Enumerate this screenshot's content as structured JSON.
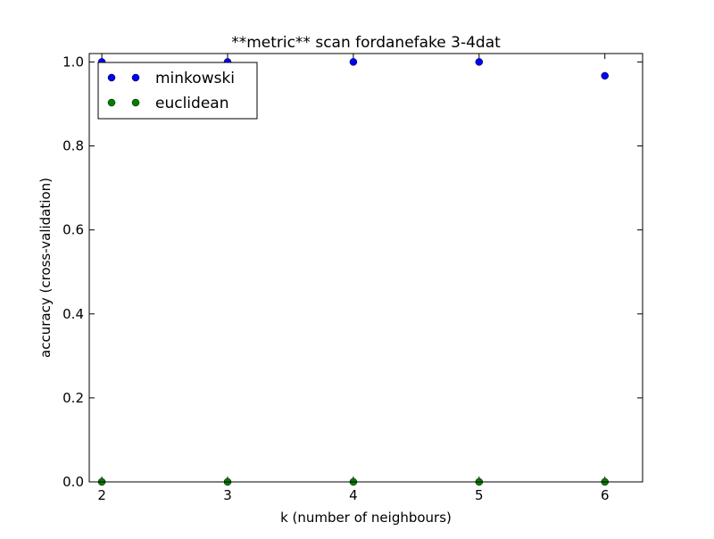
{
  "chart_data": {
    "type": "scatter",
    "title": "**metric** scan fordanefake 3-4dat",
    "xlabel": "k (number of neighbours)",
    "ylabel": "accuracy (cross-validation)",
    "xlim": [
      1.9,
      6.3
    ],
    "ylim": [
      0.0,
      1.02
    ],
    "x_ticks": [
      2,
      3,
      4,
      5,
      6
    ],
    "x_tick_labels": [
      "2",
      "3",
      "4",
      "5",
      "6"
    ],
    "y_ticks": [
      0.0,
      0.2,
      0.4,
      0.6,
      0.8,
      1.0
    ],
    "y_tick_labels": [
      "0.0",
      "0.2",
      "0.4",
      "0.6",
      "0.8",
      "1.0"
    ],
    "grid": false,
    "legend_position": "top-left",
    "series": [
      {
        "name": "minkowski",
        "color": "#0000ff",
        "x": [
          2,
          3,
          4,
          5,
          6
        ],
        "y": [
          1.0,
          1.0,
          1.0,
          1.0,
          0.967
        ]
      },
      {
        "name": "euclidean",
        "color": "#008000",
        "x": [
          2,
          3,
          4,
          5,
          6
        ],
        "y": [
          0.0,
          0.0,
          0.0,
          0.0,
          0.0
        ]
      }
    ]
  }
}
